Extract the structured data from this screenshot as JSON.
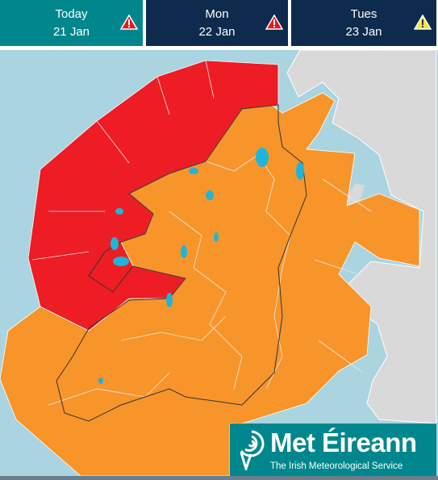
{
  "tabs": [
    {
      "day": "Today",
      "date": "21 Jan"
    },
    {
      "day": "Mon",
      "date": "22 Jan"
    },
    {
      "day": "Tues",
      "date": "23 Jan"
    }
  ],
  "logo": {
    "name": "Met Éireann",
    "tagline": "The Irish Meteorological Service"
  }
}
